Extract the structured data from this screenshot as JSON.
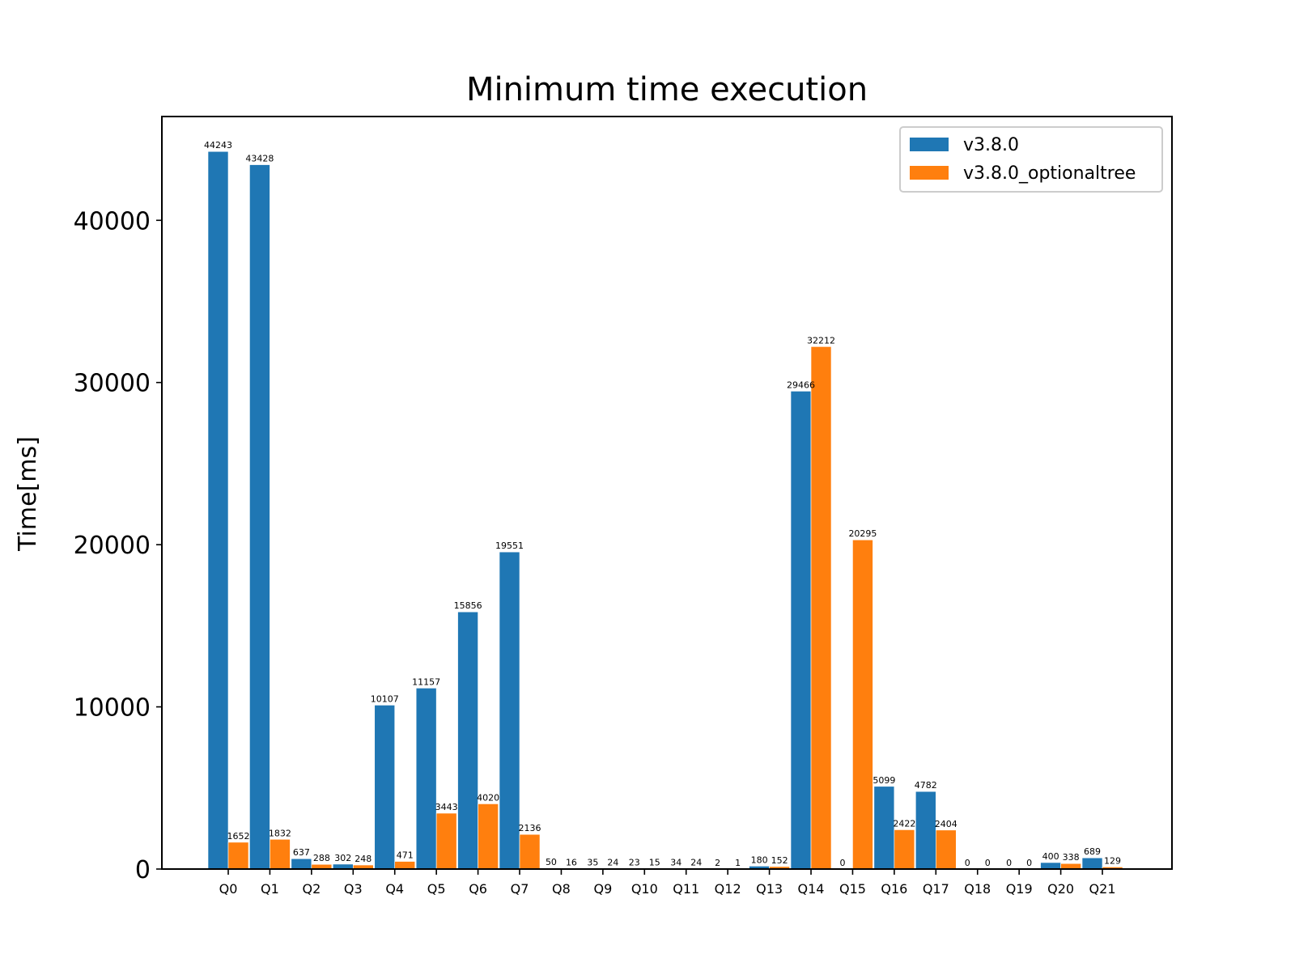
{
  "chart_data": {
    "type": "bar",
    "title": "Minimum time execution",
    "xlabel": "",
    "ylabel": "Time[ms]",
    "ylim": [
      0,
      46400
    ],
    "yticks": [
      0,
      10000,
      20000,
      30000,
      40000
    ],
    "grid": false,
    "legend_position": "top-right",
    "categories": [
      "Q0",
      "Q1",
      "Q2",
      "Q3",
      "Q4",
      "Q5",
      "Q6",
      "Q7",
      "Q8",
      "Q9",
      "Q10",
      "Q11",
      "Q12",
      "Q13",
      "Q14",
      "Q15",
      "Q16",
      "Q17",
      "Q18",
      "Q19",
      "Q20",
      "Q21"
    ],
    "series": [
      {
        "name": "v3.8.0",
        "color": "#1f77b4",
        "values": [
          44243,
          43428,
          637,
          302,
          10107,
          11157,
          15856,
          19551,
          50,
          35,
          23,
          34,
          2,
          180,
          29466,
          0,
          5099,
          4782,
          0,
          0,
          400,
          689
        ]
      },
      {
        "name": "v3.8.0_optionaltree",
        "color": "#ff7f0e",
        "values": [
          1652,
          1832,
          288,
          248,
          471,
          3443,
          4020,
          2136,
          16,
          24,
          15,
          24,
          1,
          152,
          32212,
          20295,
          2422,
          2404,
          0,
          0,
          338,
          129
        ]
      }
    ]
  }
}
